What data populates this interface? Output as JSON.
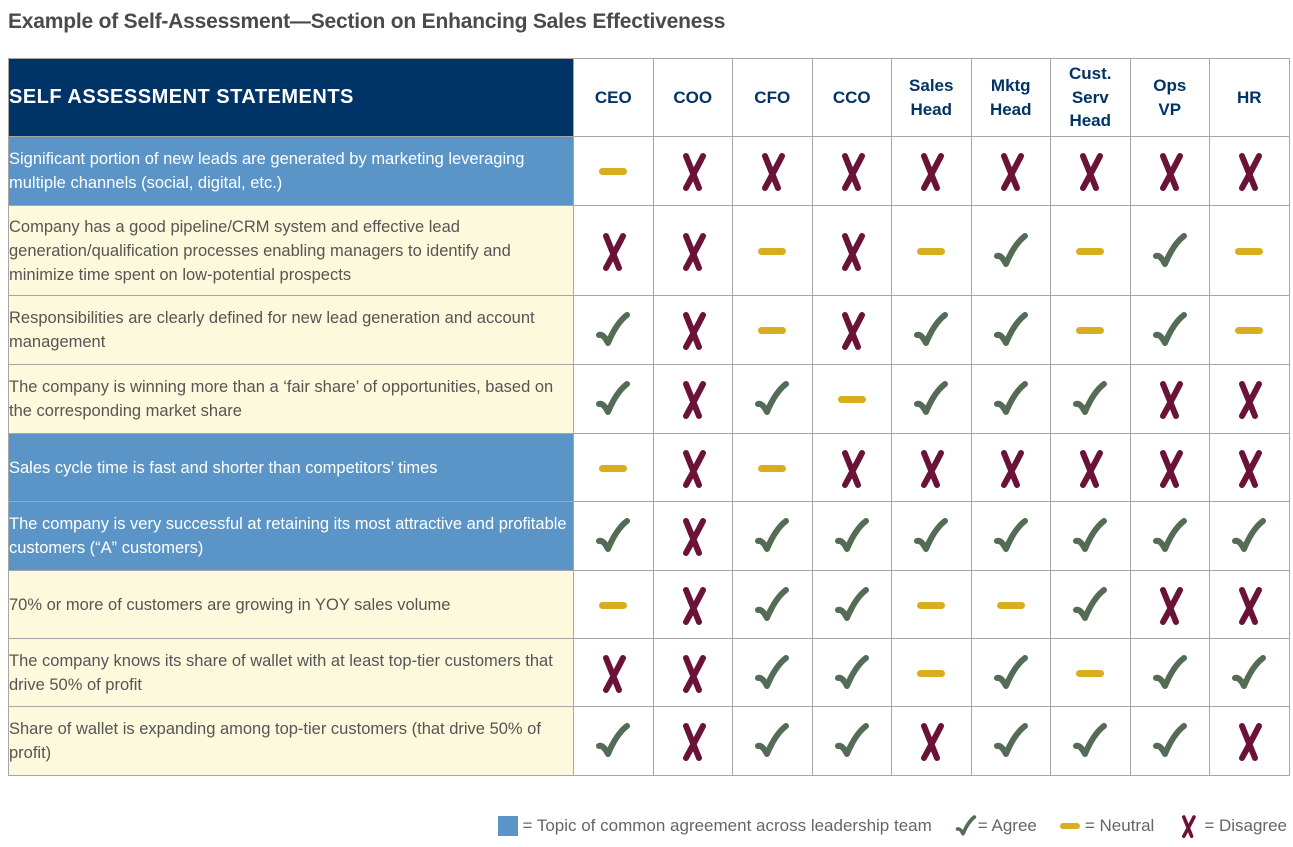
{
  "title": "Example of Self-Assessment—Section on Enhancing Sales Effectiveness",
  "table": {
    "header_label": "SELF ASSESSMENT STATEMENTS",
    "roles": [
      {
        "line1": "CEO",
        "line2": "",
        "line3": ""
      },
      {
        "line1": "COO",
        "line2": "",
        "line3": ""
      },
      {
        "line1": "CFO",
        "line2": "",
        "line3": ""
      },
      {
        "line1": "CCO",
        "line2": "",
        "line3": ""
      },
      {
        "line1": "Sales",
        "line2": "Head",
        "line3": ""
      },
      {
        "line1": "Mktg",
        "line2": "Head",
        "line3": ""
      },
      {
        "line1": "Cust.",
        "line2": "Serv",
        "line3": "Head"
      },
      {
        "line1": "Ops",
        "line2": "VP",
        "line3": ""
      },
      {
        "line1": "HR",
        "line2": "",
        "line3": ""
      }
    ],
    "rows": [
      {
        "statement": "Significant portion of new leads are generated by marketing leveraging multiple channels (social, digital, etc.)",
        "common_agreement": true,
        "height": 69,
        "responses": [
          "neutral",
          "disagree",
          "disagree",
          "disagree",
          "disagree",
          "disagree",
          "disagree",
          "disagree",
          "disagree"
        ]
      },
      {
        "statement": "Company has a good pipeline/CRM system and effective lead generation/qualification processes enabling managers to identify and minimize time spent on low-potential prospects",
        "common_agreement": false,
        "height": 90,
        "responses": [
          "disagree",
          "disagree",
          "neutral",
          "disagree",
          "neutral",
          "agree",
          "neutral",
          "agree",
          "neutral"
        ]
      },
      {
        "statement": "Responsibilities are clearly defined for new lead generation and account management",
        "common_agreement": false,
        "height": 69,
        "responses": [
          "agree",
          "disagree",
          "neutral",
          "disagree",
          "agree",
          "agree",
          "neutral",
          "agree",
          "neutral"
        ]
      },
      {
        "statement": "The company is winning more than a ‘fair share’ of opportunities, based on the corresponding market share",
        "common_agreement": false,
        "height": 69,
        "responses": [
          "agree",
          "disagree",
          "agree",
          "neutral",
          "agree",
          "agree",
          "agree",
          "disagree",
          "disagree"
        ]
      },
      {
        "statement": "Sales cycle time is fast and shorter than competitors’ times",
        "common_agreement": true,
        "height": 68,
        "responses": [
          "neutral",
          "disagree",
          "neutral",
          "disagree",
          "disagree",
          "disagree",
          "disagree",
          "disagree",
          "disagree"
        ]
      },
      {
        "statement": "The company is very successful at retaining its most attractive and profitable customers (“A” customers)",
        "common_agreement": true,
        "height": 69,
        "responses": [
          "agree",
          "disagree",
          "agree",
          "agree",
          "agree",
          "agree",
          "agree",
          "agree",
          "agree"
        ]
      },
      {
        "statement": "70% or more of customers are growing in YOY sales volume",
        "common_agreement": false,
        "height": 68,
        "responses": [
          "neutral",
          "disagree",
          "agree",
          "agree",
          "neutral",
          "neutral",
          "agree",
          "disagree",
          "disagree"
        ]
      },
      {
        "statement": "The company knows its share of wallet with at least top-tier customers that drive 50% of profit",
        "common_agreement": false,
        "height": 68,
        "responses": [
          "disagree",
          "disagree",
          "agree",
          "agree",
          "neutral",
          "agree",
          "neutral",
          "agree",
          "agree"
        ]
      },
      {
        "statement": "Share of wallet is expanding among top-tier customers (that drive 50% of profit)",
        "common_agreement": false,
        "height": 69,
        "responses": [
          "agree",
          "disagree",
          "agree",
          "agree",
          "disagree",
          "agree",
          "agree",
          "agree",
          "disagree"
        ]
      }
    ]
  },
  "legend": {
    "common_label": "= Topic of common agreement across leadership team",
    "agree_label": "= Agree",
    "neutral_label": "= Neutral",
    "disagree_label": "= Disagree"
  },
  "colors": {
    "header_bg": "#003366",
    "role_text": "#003366",
    "common_bg": "#5b95c8",
    "normal_bg": "#fdf9dc",
    "agree": "#546b55",
    "neutral": "#d9ae1e",
    "disagree": "#6b1238",
    "grid_line": "#a8a6a2"
  }
}
